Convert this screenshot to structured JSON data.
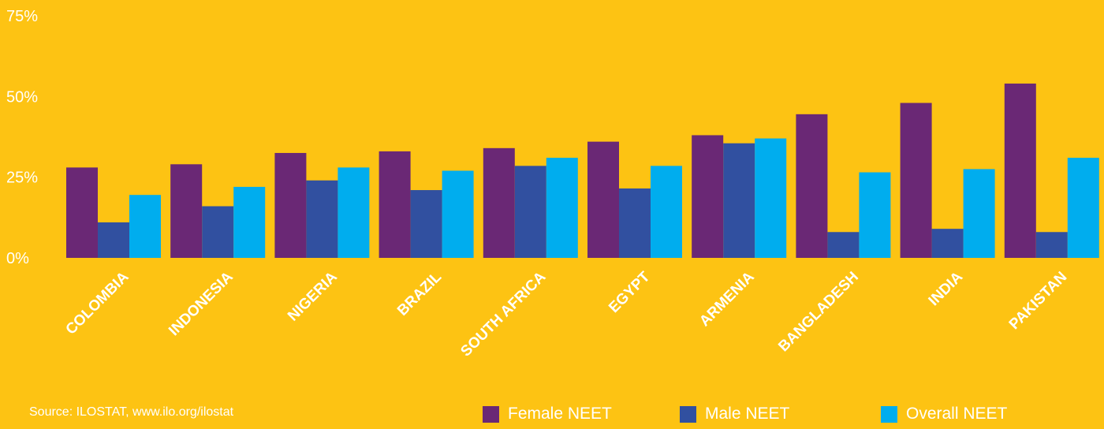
{
  "chart_data": {
    "type": "bar",
    "categories": [
      "COLOMBIA",
      "INDONESIA",
      "NIGERIA",
      "BRAZIL",
      "SOUTH AFRICA",
      "EGYPT",
      "ARMENIA",
      "BANGLADESH",
      "INDIA",
      "PAKISTAN"
    ],
    "series": [
      {
        "name": "Female NEET",
        "color": "#6A2875",
        "values": [
          28,
          29,
          32.5,
          33,
          34,
          36,
          38,
          44.5,
          48,
          54
        ]
      },
      {
        "name": "Male NEET",
        "color": "#3150A0",
        "values": [
          11,
          16,
          24,
          21,
          28.5,
          21.5,
          35.5,
          8,
          9,
          8
        ]
      },
      {
        "name": "Overall NEET",
        "color": "#00ADEE",
        "values": [
          19.5,
          22,
          28,
          27,
          31,
          28.5,
          37,
          26.5,
          27.5,
          31
        ]
      }
    ],
    "yticks": [
      "0%",
      "25%",
      "50%",
      "75%"
    ],
    "ytick_values": [
      0,
      25,
      50,
      75
    ],
    "ylim": [
      0,
      75
    ],
    "grid": false,
    "legend_position": "bottom-right"
  },
  "source_note": "Source: ILOSTAT, www.ilo.org/ilostat"
}
